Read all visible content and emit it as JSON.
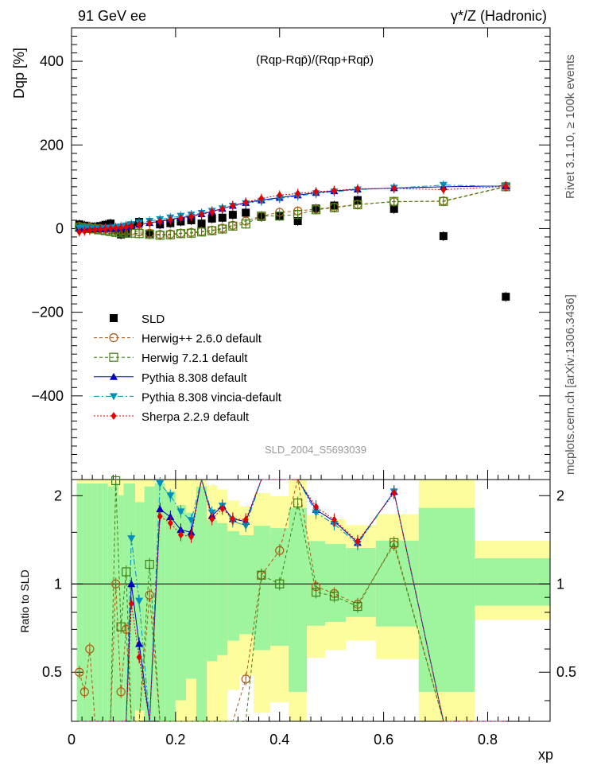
{
  "header": {
    "left": "91 GeV ee",
    "right": "γ*/Z (Hadronic)",
    "formula": "(Rqp-Rqp̄)/(Rqp+Rqp̄)",
    "analysis_id": "SLD_2004_S5693039"
  },
  "side_labels": {
    "rivet": "Rivet 3.1.10, ≥ 100k events",
    "mcplots": "mcplots.cern.ch [arXiv:1306.3436]"
  },
  "colors": {
    "SLD": "#000000",
    "Herwig++": "#b05a10",
    "Herwig7": "#3f7f10",
    "Pythia": "#0000c0",
    "Vincia": "#0090c0",
    "Sherpa": "#e00000",
    "band_green": "#9ef59e",
    "band_yellow": "#fdfd9e"
  },
  "chart_data": {
    "type": "scatter",
    "title": "",
    "xlabel": "xp",
    "ylabel": "Dqp [%]",
    "ratio_ylabel": "Ratio to SLD",
    "xlim": [
      0,
      0.92
    ],
    "ylim": [
      -600,
      480
    ],
    "ratio_ylim": [
      0.34,
      2.27
    ],
    "xticks": [
      0,
      0.2,
      0.4,
      0.6,
      0.8
    ],
    "xtick_labels": [
      "0",
      "0.2",
      "0.4",
      "0.6",
      "0.8"
    ],
    "yticks": [
      400,
      200,
      0,
      -200,
      -400
    ],
    "ytick_labels": [
      "400",
      "200",
      "0",
      "−200",
      "−400"
    ],
    "ratio_yticks": [
      2,
      1,
      0.5
    ],
    "ratio_ytick_labels": [
      "2",
      "1",
      "0.5"
    ],
    "x": [
      0.015,
      0.025,
      0.035,
      0.045,
      0.055,
      0.065,
      0.075,
      0.085,
      0.095,
      0.105,
      0.115,
      0.13,
      0.15,
      0.17,
      0.19,
      0.21,
      0.23,
      0.25,
      0.27,
      0.29,
      0.31,
      0.335,
      0.365,
      0.4,
      0.435,
      0.47,
      0.505,
      0.55,
      0.62,
      0.715,
      0.835
    ],
    "series": [
      {
        "name": "SLD",
        "marker": "square-filled",
        "color": "#000000",
        "line": "none",
        "values": [
          10,
          7,
          5,
          4,
          6,
          9,
          12,
          -4,
          -14,
          -10,
          7,
          16,
          -12,
          10,
          13,
          17,
          20,
          12,
          24,
          26,
          33,
          38,
          28,
          30,
          18,
          48,
          55,
          68,
          47,
          -18,
          -163
        ]
      },
      {
        "name": "Herwig++ 2.6.0 default",
        "marker": "circle-open",
        "color": "#b05a10",
        "line": "dashed",
        "values": [
          5,
          3,
          3,
          1,
          0,
          -1,
          -3,
          -4,
          -6,
          -7,
          -6,
          -8,
          -11,
          -14,
          -13,
          -11,
          -9,
          -7,
          -4,
          1,
          8,
          18,
          30,
          39,
          42,
          47,
          51,
          58,
          64,
          66,
          101
        ]
      },
      {
        "name": "Herwig 7.2.1 default",
        "marker": "square-open",
        "color": "#3f7f10",
        "line": "dashed",
        "values": [
          3,
          1,
          0,
          -1,
          -3,
          -5,
          -7,
          -9,
          -10,
          -11,
          -11,
          -12,
          -14,
          -16,
          -15,
          -12,
          -11,
          -8,
          -5,
          -1,
          6,
          11,
          30,
          30,
          34,
          45,
          50,
          57,
          65,
          65,
          100
        ]
      },
      {
        "name": "Pythia 8.308 default",
        "marker": "triangle-up",
        "color": "#0000c0",
        "line": "solid",
        "values": [
          1,
          0,
          0,
          -1,
          -1,
          0,
          0,
          1,
          2,
          4,
          7,
          10,
          14,
          18,
          22,
          26,
          30,
          35,
          41,
          48,
          55,
          62,
          68,
          74,
          80,
          86,
          90,
          94,
          97,
          100,
          102
        ]
      },
      {
        "name": "Pythia 8.308 vincia-default",
        "marker": "triangle-down",
        "color": "#0090c0",
        "line": "dashdot",
        "values": [
          2,
          1,
          1,
          0,
          0,
          1,
          2,
          3,
          5,
          7,
          10,
          14,
          18,
          22,
          26,
          30,
          33,
          37,
          42,
          48,
          54,
          60,
          66,
          72,
          78,
          84,
          88,
          93,
          97,
          104,
          101
        ]
      },
      {
        "name": "Sherpa 2.2.9 default",
        "marker": "diamond",
        "color": "#e00000",
        "line": "dotted",
        "values": [
          -8,
          -6,
          -4,
          -3,
          -2,
          -1,
          0,
          1,
          2,
          4,
          6,
          9,
          13,
          17,
          21,
          25,
          29,
          34,
          40,
          47,
          55,
          63,
          72,
          80,
          84,
          88,
          91,
          95,
          96,
          93,
          101
        ]
      }
    ],
    "legend": {
      "placement": "lower-left",
      "entries": [
        "SLD",
        "Herwig++ 2.6.0 default",
        "Herwig 7.2.1 default",
        "Pythia 8.308 default",
        "Pythia 8.308 vincia-default",
        "Sherpa 2.2.9 default"
      ]
    }
  }
}
